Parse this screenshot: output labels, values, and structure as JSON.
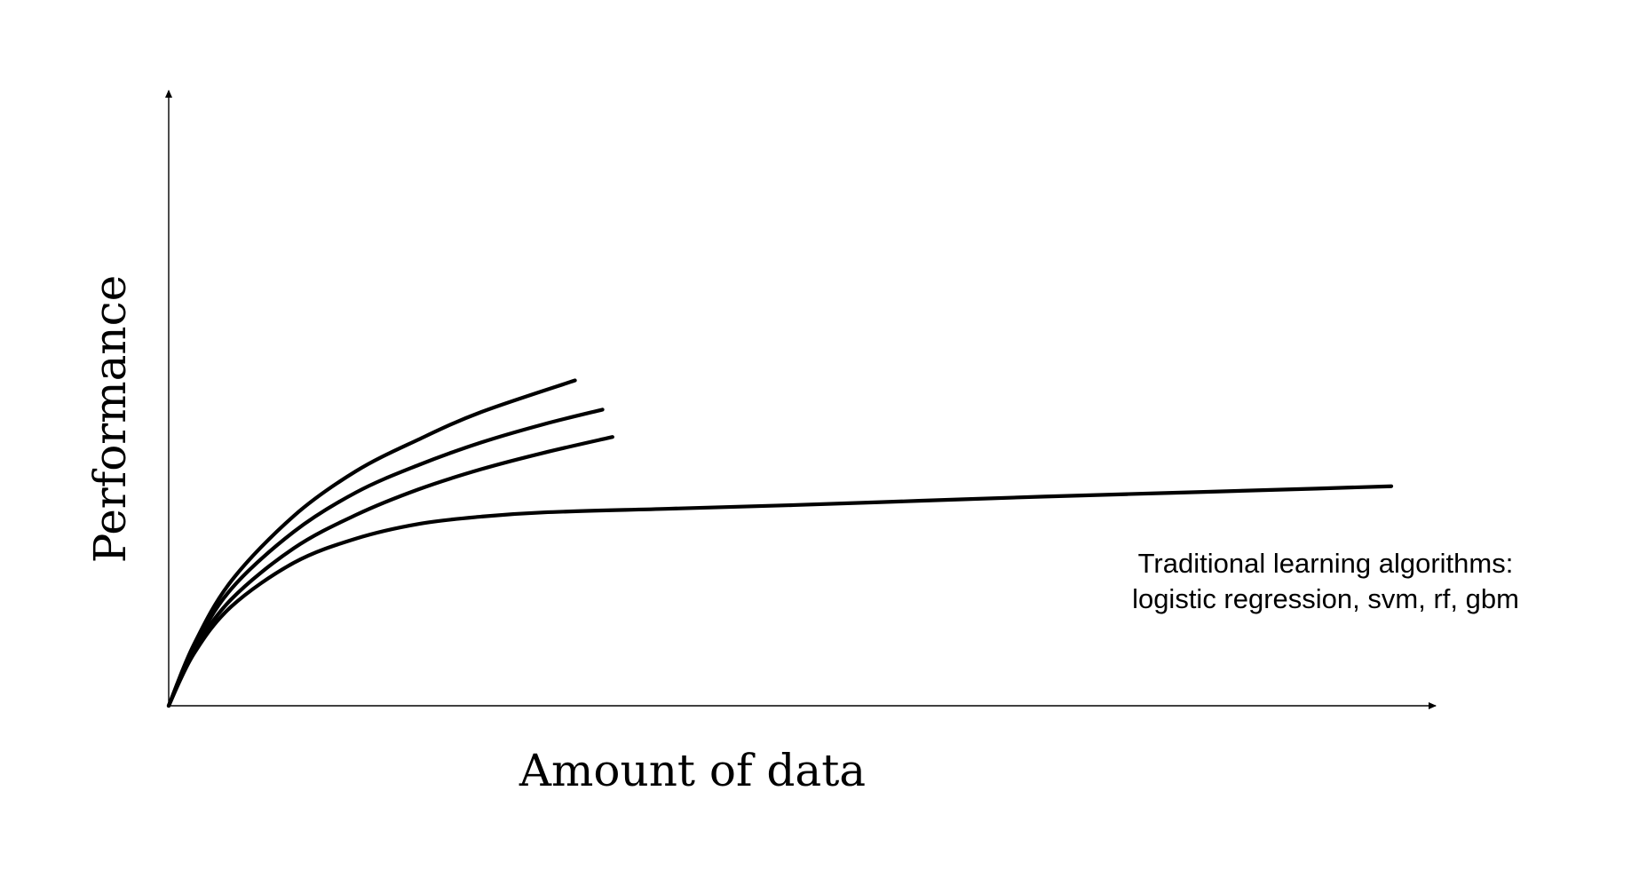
{
  "chart_data": {
    "type": "line",
    "title": "",
    "xlabel": "Amount of data",
    "ylabel": "Performance",
    "grid": false,
    "legend": "none",
    "xlim": [
      0,
      100
    ],
    "ylim": [
      0,
      100
    ],
    "annotation": {
      "lines": [
        "Traditional learning algorithms:",
        "logistic regression, svm, rf, gbm"
      ]
    },
    "series": [
      {
        "x": [
          0,
          2,
          5,
          10,
          15,
          20,
          25,
          32.5
        ],
        "y": [
          0,
          10,
          20.5,
          31.2,
          38.6,
          43.8,
          48.3,
          53.5
        ]
      },
      {
        "x": [
          0,
          2,
          5,
          10,
          15,
          20,
          25,
          30,
          34.7
        ],
        "y": [
          0,
          9.5,
          19.2,
          28.6,
          35.1,
          39.6,
          43.3,
          46.3,
          48.7
        ]
      },
      {
        "x": [
          0,
          2,
          5,
          10,
          15,
          20,
          25,
          30,
          35.5
        ],
        "y": [
          0,
          9,
          17.5,
          25.9,
          31.4,
          35.6,
          38.9,
          41.6,
          44.2
        ]
      },
      {
        "x": [
          0,
          2,
          5,
          10,
          15,
          20,
          25,
          30,
          40,
          50,
          60,
          70,
          80,
          90,
          97.8
        ],
        "y": [
          0,
          8.5,
          16.3,
          23.5,
          27.5,
          29.9,
          31.1,
          31.8,
          32.4,
          33,
          33.7,
          34.4,
          35,
          35.6,
          36.1
        ]
      }
    ]
  }
}
